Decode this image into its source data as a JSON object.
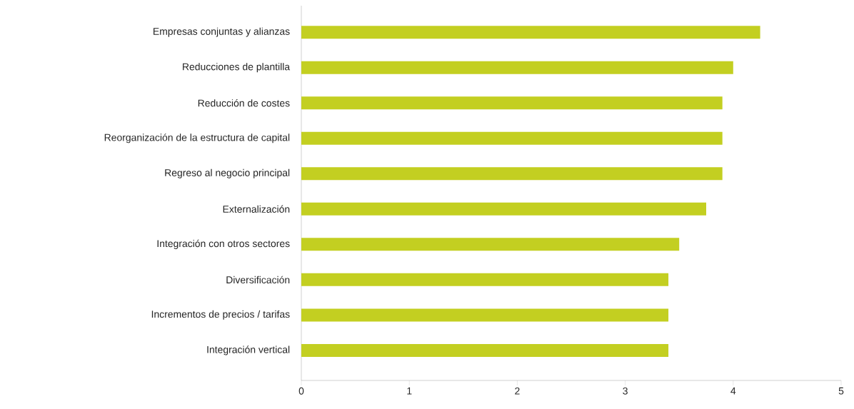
{
  "chart_data": {
    "type": "bar",
    "orientation": "horizontal",
    "categories": [
      "Empresas conjuntas y alianzas",
      "Reducciones de plantilla",
      "Reducción de costes",
      "Reorganización de la estructura de capital",
      "Regreso al negocio principal",
      "Externalización",
      "Integración con otros sectores",
      "Diversificación",
      "Incrementos de precios / tarifas",
      "Integración vertical"
    ],
    "values": [
      4.25,
      4.0,
      3.9,
      3.9,
      3.9,
      3.75,
      3.5,
      3.4,
      3.4,
      3.4
    ],
    "color": "#c3cf21",
    "xlim": [
      0,
      5
    ],
    "xticks": [
      0,
      1,
      2,
      3,
      4,
      5
    ]
  }
}
